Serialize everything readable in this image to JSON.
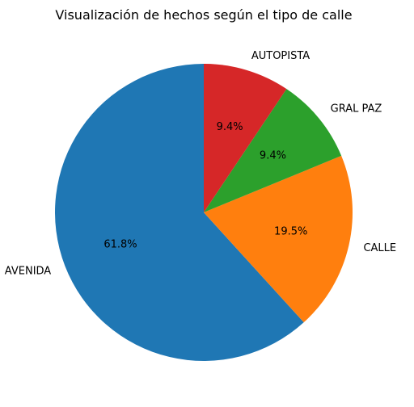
{
  "chart_data": {
    "type": "pie",
    "title": "Visualización de hechos según el tipo de calle",
    "start_angle_deg": 90,
    "direction": "counterclockwise",
    "slices": [
      {
        "label": "AVENIDA",
        "value": 61.8,
        "pct_label": "61.8%",
        "color": "#1f77b4"
      },
      {
        "label": "CALLE",
        "value": 19.5,
        "pct_label": "19.5%",
        "color": "#ff7f0e"
      },
      {
        "label": "GRAL PAZ",
        "value": 9.4,
        "pct_label": "9.4%",
        "color": "#2ca02c"
      },
      {
        "label": "AUTOPISTA",
        "value": 9.4,
        "pct_label": "9.4%",
        "color": "#d62728"
      }
    ]
  }
}
